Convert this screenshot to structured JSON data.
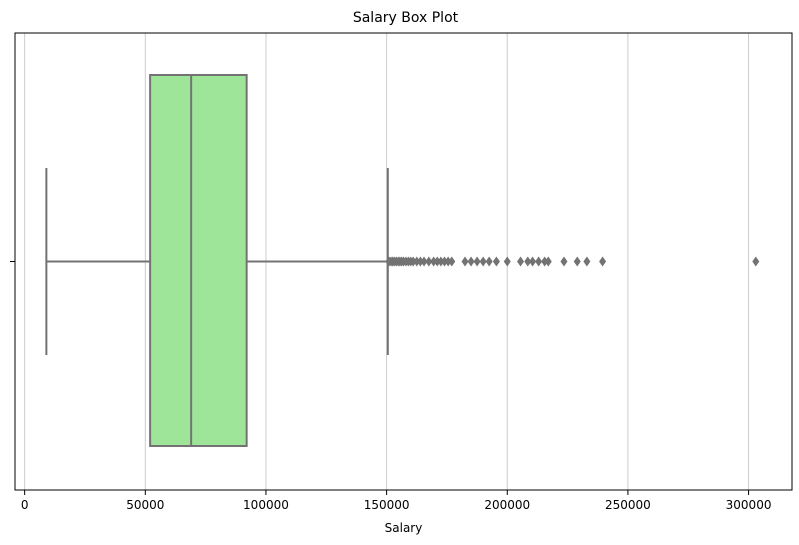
{
  "chart_data": {
    "type": "box",
    "title": "Salary Box Plot",
    "xlabel": "Salary",
    "ylabel": "",
    "orientation": "horizontal",
    "xlim": [
      -4000,
      318000
    ],
    "xticks": [
      0,
      50000,
      100000,
      150000,
      200000,
      250000,
      300000
    ],
    "xtick_labels": [
      "0",
      "50000",
      "100000",
      "150000",
      "200000",
      "250000",
      "300000"
    ],
    "grid": "vertical",
    "box": {
      "whisker_low": 9000,
      "q1": 52000,
      "median": 69000,
      "q3": 92000,
      "whisker_high": 150500
    },
    "outliers": [
      151000,
      151800,
      152500,
      153200,
      154000,
      154800,
      155500,
      156200,
      157000,
      158000,
      159000,
      160000,
      161000,
      162500,
      164000,
      165500,
      167500,
      169500,
      171000,
      172500,
      174000,
      175500,
      177000,
      182500,
      185000,
      187500,
      190000,
      192500,
      195500,
      200000,
      205500,
      208500,
      210500,
      213000,
      215500,
      217000,
      223500,
      229000,
      233000,
      239500,
      303000
    ],
    "colors": {
      "box_fill": "#9ee59a",
      "line": "#737373",
      "grid": "#cccccc"
    }
  }
}
